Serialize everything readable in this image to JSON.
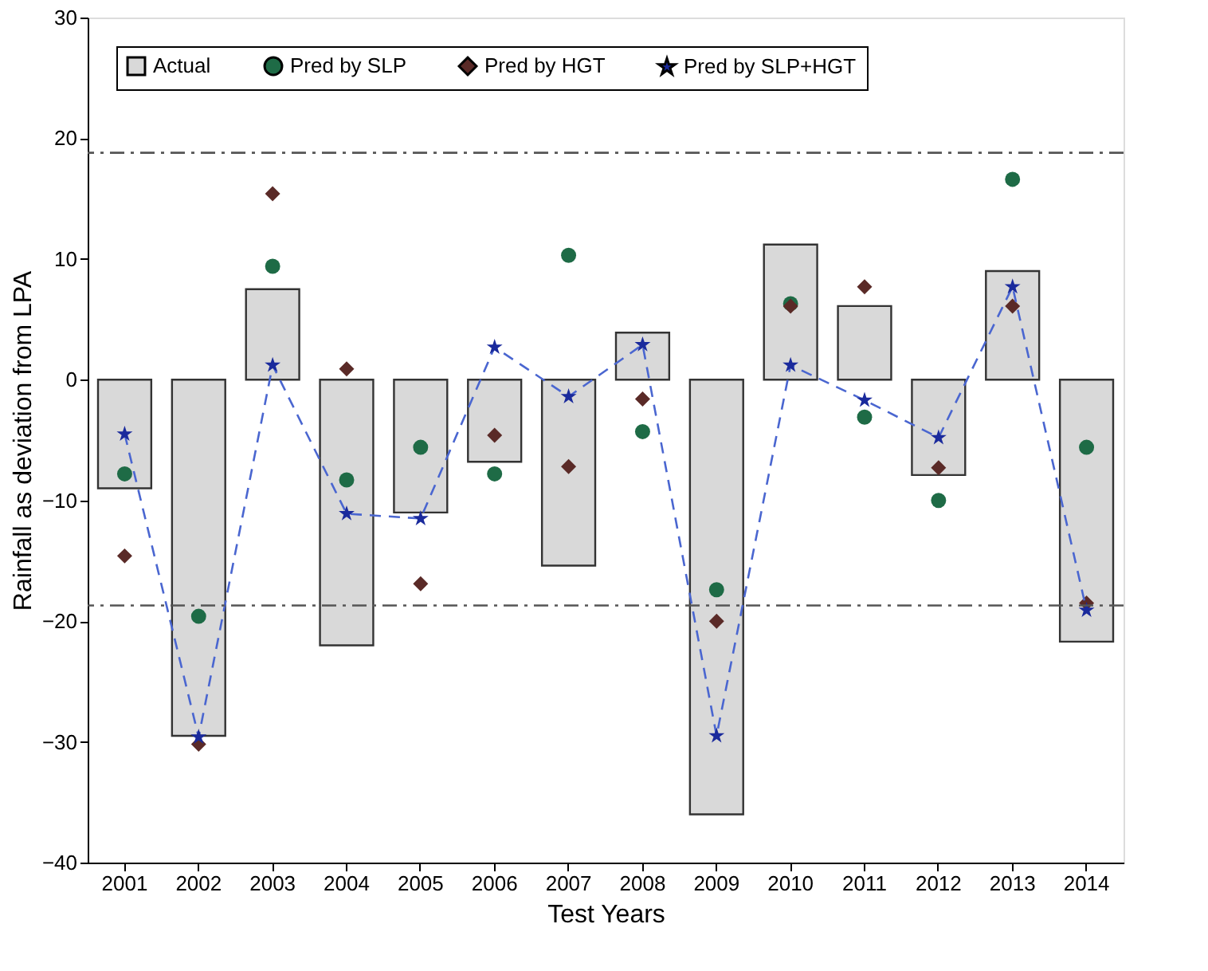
{
  "chart_data": {
    "type": "bar",
    "xlabel": "Test Years",
    "ylabel": "Rainfall as deviation from LPA",
    "categories": [
      "2001",
      "2002",
      "2003",
      "2004",
      "2005",
      "2006",
      "2007",
      "2008",
      "2009",
      "2010",
      "2011",
      "2012",
      "2013",
      "2014"
    ],
    "series": [
      {
        "name": "Actual",
        "color": "#d9d9d9",
        "values": [
          -9,
          -29.5,
          7.5,
          -22,
          -11,
          -6.8,
          -15.4,
          3.9,
          -36,
          11.2,
          6.1,
          -7.9,
          9,
          -21.7
        ]
      },
      {
        "name": "Pred by SLP",
        "type": "scatter",
        "marker": "circle",
        "color": "#1e6b46",
        "values": [
          -7.8,
          -19.6,
          9.4,
          -8.3,
          -5.6,
          -7.8,
          10.3,
          -4.3,
          -17.4,
          6.3,
          -3.1,
          -10,
          16.6,
          -5.6
        ]
      },
      {
        "name": "Pred by HGT",
        "type": "scatter",
        "marker": "diamond",
        "color": "#5a2a27",
        "values": [
          -14.6,
          -30.2,
          15.4,
          0.9,
          -16.9,
          -4.6,
          -7.2,
          -1.6,
          -20,
          6.1,
          7.7,
          -7.3,
          6.1,
          -18.5
        ]
      },
      {
        "name": "Pred by SLP+HGT",
        "type": "line",
        "marker": "star",
        "line_style": "dashed",
        "color": "#1a2a9c",
        "values": [
          -4.5,
          -29.6,
          1.2,
          -11.1,
          -11.5,
          2.7,
          -1.4,
          2.9,
          -29.5,
          1.2,
          -1.7,
          -4.8,
          7.7,
          -19.1
        ]
      }
    ],
    "ylim": [
      -40,
      30
    ],
    "yticks": [
      -40,
      -30,
      -20,
      -10,
      0,
      10,
      20,
      30
    ],
    "ref_lines": [
      {
        "axis": "y",
        "value": 18.8,
        "color": "#555555",
        "line_style": "dashdot"
      },
      {
        "axis": "y",
        "value": -18.7,
        "color": "#555555",
        "line_style": "dashdot"
      }
    ],
    "grid": false,
    "legend": "top left"
  }
}
